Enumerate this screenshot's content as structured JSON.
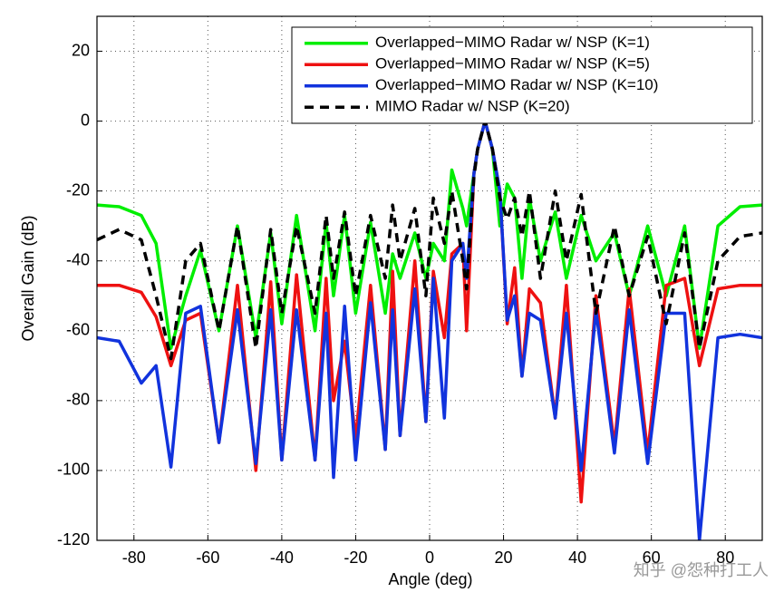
{
  "chart_data": {
    "type": "line",
    "xlabel": "Angle (deg)",
    "ylabel": "Overall Gain (dB)",
    "watermark": "知乎 @怨种打工人",
    "x": [
      -90,
      -84,
      -78,
      -74,
      -70,
      -66,
      -62,
      -57,
      -52,
      -47,
      -43,
      -40,
      -36,
      -31,
      -28,
      -26,
      -23,
      -20,
      -16,
      -12,
      -10,
      -8,
      -4,
      -1,
      1,
      4,
      6,
      9,
      10,
      12,
      13,
      15,
      17,
      19,
      21,
      23,
      25,
      27,
      30,
      34,
      37,
      41,
      45,
      50,
      54,
      59,
      64,
      69,
      73,
      78,
      84,
      90
    ],
    "series": [
      {
        "name": "Overlapped−MIMO Radar w/ NSP (K=1)",
        "color": "#00ee00",
        "dash": false,
        "values": [
          -24,
          -24.5,
          -27,
          -35,
          -65,
          -50,
          -37,
          -60,
          -30,
          -62,
          -32,
          -58,
          -27,
          -60,
          -29,
          -50,
          -27,
          -55,
          -29,
          -55,
          -38,
          -45,
          -32,
          -45,
          -35,
          -40,
          -14,
          -25,
          -30,
          -15,
          -8,
          0,
          -8,
          -30,
          -18,
          -22,
          -45,
          -22,
          -40,
          -26,
          -45,
          -27,
          -40,
          -32,
          -50,
          -30,
          -50,
          -30,
          -65,
          -30,
          -24.5,
          -24
        ]
      },
      {
        "name": "Overlapped−MIMO Radar w/ NSP (K=5)",
        "color": "#ee1111",
        "dash": false,
        "values": [
          -47,
          -47,
          -49,
          -56,
          -70,
          -57,
          -55,
          -92,
          -47,
          -100,
          -46,
          -97,
          -44,
          -97,
          -45,
          -80,
          -63,
          -91,
          -47,
          -94,
          -43,
          -90,
          -40,
          -86,
          -43,
          -62,
          -38,
          -35,
          -60,
          -15,
          -8,
          0,
          -8,
          -20,
          -58,
          -42,
          -73,
          -48,
          -52,
          -85,
          -47,
          -109,
          -50,
          -93,
          -48,
          -95,
          -47,
          -45,
          -70,
          -48,
          -47,
          -47
        ]
      },
      {
        "name": "Overlapped−MIMO Radar w/ NSP (K=10)",
        "color": "#1133dd",
        "dash": false,
        "values": [
          -62,
          -63,
          -75,
          -70,
          -99,
          -55,
          -53,
          -92,
          -54,
          -98,
          -54,
          -97,
          -54,
          -97,
          -55,
          -102,
          -53,
          -97,
          -52,
          -94,
          -54,
          -90,
          -48,
          -86,
          -45,
          -85,
          -40,
          -35,
          -45,
          -15,
          -8,
          0,
          -8,
          -20,
          -57,
          -50,
          -73,
          -55,
          -57,
          -85,
          -55,
          -100,
          -54,
          -95,
          -54,
          -98,
          -55,
          -55,
          -120,
          -62,
          -61,
          -62
        ]
      },
      {
        "name": "MIMO Radar w/ NSP (K=20)",
        "color": "#000000",
        "dash": true,
        "values": [
          -34,
          -31,
          -34,
          -50,
          -68,
          -40,
          -35,
          -60,
          -30,
          -65,
          -31,
          -55,
          -30,
          -55,
          -27,
          -45,
          -26,
          -50,
          -27,
          -45,
          -24,
          -40,
          -25,
          -50,
          -22,
          -35,
          -20,
          -40,
          -48,
          -16,
          -8,
          0,
          -8,
          -22,
          -28,
          -22,
          -33,
          -20,
          -45,
          -20,
          -40,
          -21,
          -55,
          -30,
          -50,
          -33,
          -58,
          -32,
          -65,
          -40,
          -33,
          -32
        ]
      }
    ],
    "xlim": [
      -90,
      90
    ],
    "xticks": [
      -80,
      -60,
      -40,
      -20,
      0,
      20,
      40,
      60,
      80
    ],
    "ylim": [
      -120,
      30
    ],
    "yticks": [
      -120,
      -100,
      -80,
      -60,
      -40,
      -20,
      0,
      20
    ],
    "grid": true,
    "legend": "upper right"
  }
}
